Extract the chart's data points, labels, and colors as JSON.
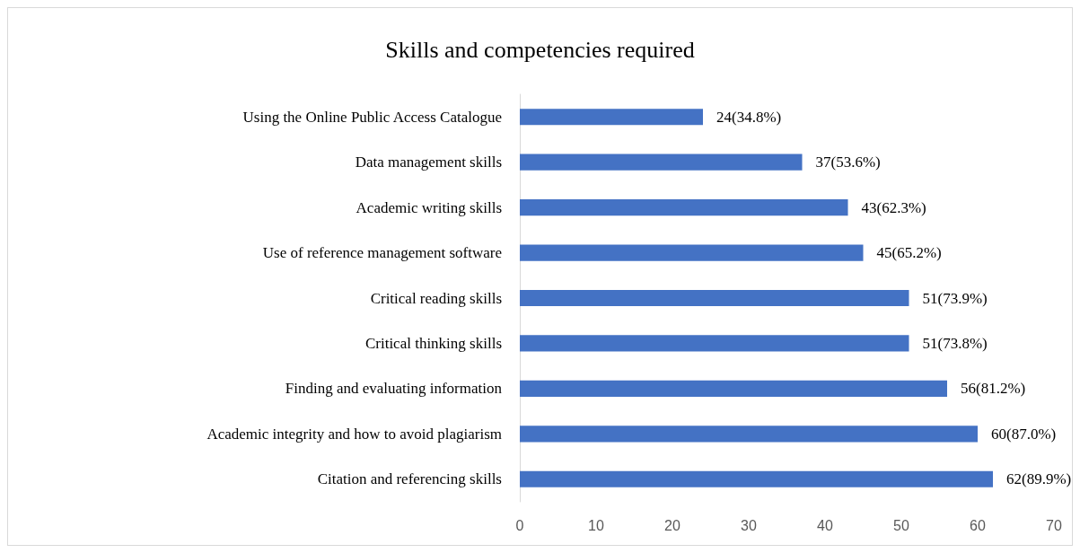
{
  "chart_data": {
    "type": "bar",
    "orientation": "horizontal",
    "title": "Skills and competencies required",
    "categories": [
      "Using the Online Public Access Catalogue",
      "Data management skills",
      "Academic writing skills",
      "Use of reference management software",
      "Critical reading skills",
      "Critical thinking skills",
      "Finding and evaluating information",
      "Academic integrity and how to avoid plagiarism",
      "Citation and referencing skills"
    ],
    "values": [
      24,
      37,
      43,
      45,
      51,
      51,
      56,
      60,
      62
    ],
    "value_labels": [
      "24(34.8%)",
      "37(53.6%)",
      "43(62.3%)",
      "45(65.2%)",
      "51(73.9%)",
      "51(73.8%)",
      "56(81.2%)",
      "60(87.0%)",
      "62(89.9%)"
    ],
    "color": "#4472c4",
    "xlim": [
      0,
      70
    ],
    "xticks": [
      0,
      10,
      20,
      30,
      40,
      50,
      60,
      70
    ],
    "grid": false
  }
}
